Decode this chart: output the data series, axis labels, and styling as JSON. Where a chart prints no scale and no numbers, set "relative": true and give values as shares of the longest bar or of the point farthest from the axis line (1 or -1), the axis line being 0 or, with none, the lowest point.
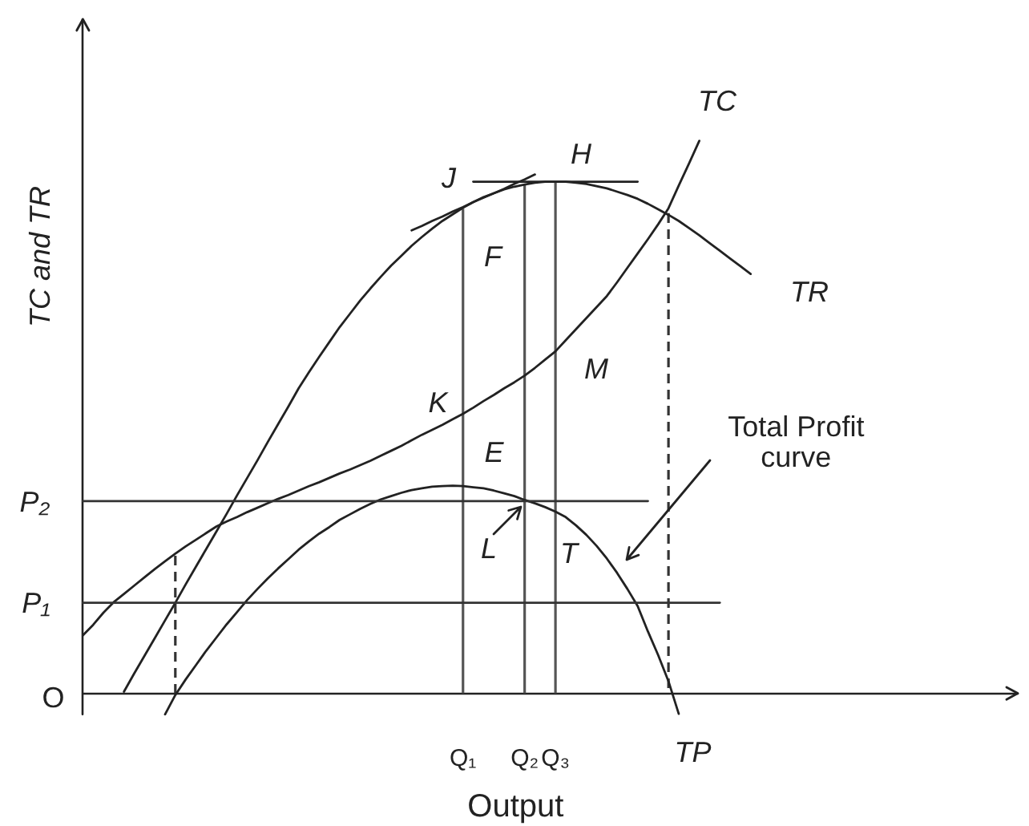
{
  "chart_data": {
    "type": "line",
    "relative": true,
    "marker": "none",
    "xlabel": "Output",
    "ylabel": "TC and TR",
    "categories": [
      null,
      null,
      null,
      null,
      null,
      null,
      null,
      null,
      null,
      null,
      null,
      null,
      null,
      null,
      null,
      null,
      null,
      null,
      null,
      null,
      null,
      null,
      null,
      null,
      null,
      null,
      null,
      null,
      null,
      null,
      null,
      null,
      null,
      null,
      null,
      null,
      null,
      "Q₁",
      null,
      null,
      null,
      null,
      null,
      "Q₂",
      null,
      null,
      "Q₃",
      null,
      null,
      null,
      null,
      null,
      null,
      null,
      null,
      null,
      null,
      null,
      null,
      null,
      null,
      null,
      null,
      null,
      null,
      null,
      null,
      null,
      null,
      null,
      null,
      null,
      null,
      null,
      null,
      null,
      null,
      null,
      null,
      null,
      null,
      null,
      null,
      null,
      null,
      null,
      null,
      null,
      null,
      null,
      null,
      null
    ],
    "series": [
      {
        "name": "TR",
        "color": "#222222",
        "values": [
          null,
          null,
          null,
          null,
          0.003,
          0.036,
          0.068,
          0.1,
          0.132,
          0.164,
          0.197,
          0.229,
          0.261,
          0.293,
          0.325,
          0.358,
          0.39,
          0.422,
          0.455,
          0.487,
          0.519,
          0.552,
          0.581,
          0.609,
          0.636,
          0.663,
          0.687,
          0.711,
          0.733,
          0.754,
          0.774,
          0.792,
          0.81,
          0.826,
          0.841,
          0.855,
          0.867,
          0.879,
          0.889,
          0.898,
          0.905,
          0.912,
          0.917,
          0.921,
          0.924,
          0.926,
          0.926,
          0.926,
          0.924,
          0.922,
          0.918,
          0.914,
          0.908,
          0.902,
          0.895,
          0.886,
          0.876,
          0.866,
          0.855,
          0.842,
          0.829,
          0.815,
          0.801,
          0.787,
          0.773,
          0.759,
          null,
          null,
          null,
          null,
          null,
          null,
          null,
          null,
          null,
          null,
          null,
          null,
          null,
          null,
          null,
          null,
          null,
          null,
          null,
          null,
          null,
          null,
          null,
          null,
          null,
          null
        ]
      },
      {
        "name": "TC",
        "color": "#222222",
        "values": [
          0.105,
          0.124,
          0.146,
          0.165,
          0.18,
          0.195,
          0.21,
          0.225,
          0.239,
          0.253,
          0.266,
          0.278,
          0.29,
          0.302,
          0.311,
          0.319,
          0.328,
          0.336,
          0.344,
          0.352,
          0.359,
          0.367,
          0.375,
          0.382,
          0.39,
          0.398,
          0.405,
          0.413,
          0.421,
          0.43,
          0.439,
          0.448,
          0.458,
          0.468,
          0.477,
          0.486,
          0.496,
          0.506,
          0.517,
          0.529,
          0.54,
          0.552,
          0.563,
          0.575,
          0.589,
          0.604,
          0.619,
          0.639,
          0.659,
          0.679,
          0.699,
          0.719,
          0.744,
          0.77,
          0.796,
          0.822,
          0.849,
          0.878,
          0.919,
          0.959,
          1,
          null,
          null,
          null,
          null,
          null,
          null,
          null,
          null,
          null,
          null,
          null,
          null,
          null,
          null,
          null,
          null,
          null,
          null,
          null,
          null,
          null,
          null,
          null,
          null,
          null,
          null,
          null,
          null,
          null,
          null,
          null
        ]
      },
      {
        "name": "TP",
        "color": "#222222",
        "values": [
          null,
          null,
          null,
          null,
          null,
          null,
          null,
          null,
          -0.038,
          -0.003,
          0.025,
          0.051,
          0.077,
          0.101,
          0.125,
          0.147,
          0.169,
          0.189,
          0.208,
          0.226,
          0.243,
          0.26,
          0.275,
          0.289,
          0.301,
          0.314,
          0.324,
          0.334,
          0.343,
          0.351,
          0.357,
          0.363,
          0.368,
          0.371,
          0.374,
          0.375,
          0.376,
          0.375,
          0.373,
          0.371,
          0.367,
          0.362,
          0.357,
          0.35,
          0.344,
          0.337,
          0.329,
          0.319,
          0.304,
          0.287,
          0.267,
          0.244,
          0.218,
          0.189,
          0.158,
          0.112,
          0.069,
          0.022,
          -0.037,
          null,
          null,
          null,
          null,
          null,
          null,
          null,
          null,
          null,
          null,
          null,
          null,
          null,
          null,
          null,
          null,
          null,
          null,
          null,
          null,
          null,
          null,
          null,
          null,
          null,
          null,
          null,
          null,
          null,
          null,
          null,
          null,
          null
        ]
      },
      {
        "name": "P₂",
        "color": "#333333",
        "values": [
          0.348,
          0.348,
          0.348,
          0.348,
          0.348,
          0.348,
          0.348,
          0.348,
          0.348,
          0.348,
          0.348,
          0.348,
          0.348,
          0.348,
          0.348,
          0.348,
          0.348,
          0.348,
          0.348,
          0.348,
          0.348,
          0.348,
          0.348,
          0.348,
          0.348,
          0.348,
          0.348,
          0.348,
          0.348,
          0.348,
          0.348,
          0.348,
          0.348,
          0.348,
          0.348,
          0.348,
          0.348,
          0.348,
          0.348,
          0.348,
          0.348,
          0.348,
          0.348,
          0.348,
          0.348,
          0.348,
          0.348,
          0.348,
          0.348,
          0.348,
          0.348,
          0.348,
          0.348,
          0.348,
          0.348,
          0.348,
          null,
          null,
          null,
          null,
          null,
          null,
          null,
          null,
          null,
          null,
          null,
          null,
          null,
          null,
          null,
          null,
          null,
          null,
          null,
          null,
          null,
          null,
          null,
          null,
          null,
          null,
          null,
          null,
          null,
          null,
          null,
          null,
          null,
          null,
          null,
          null
        ]
      },
      {
        "name": "P₁",
        "color": "#333333",
        "values": [
          0.164,
          0.164,
          0.164,
          0.164,
          0.164,
          0.164,
          0.164,
          0.164,
          0.164,
          0.164,
          0.164,
          0.164,
          0.164,
          0.164,
          0.164,
          0.164,
          0.164,
          0.164,
          0.164,
          0.164,
          0.164,
          0.164,
          0.164,
          0.164,
          0.164,
          0.164,
          0.164,
          0.164,
          0.164,
          0.164,
          0.164,
          0.164,
          0.164,
          0.164,
          0.164,
          0.164,
          0.164,
          0.164,
          0.164,
          0.164,
          0.164,
          0.164,
          0.164,
          0.164,
          0.164,
          0.164,
          0.164,
          0.164,
          0.164,
          0.164,
          0.164,
          0.164,
          0.164,
          0.164,
          0.164,
          0.164,
          0.164,
          0.164,
          0.164,
          0.164,
          0.164,
          0.164,
          0.164,
          null,
          null,
          null,
          null,
          null,
          null,
          null,
          null,
          null,
          null,
          null,
          null,
          null,
          null,
          null,
          null,
          null,
          null,
          null,
          null,
          null,
          null,
          null,
          null,
          null,
          null,
          null,
          null,
          null
        ]
      },
      {
        "color": "#222222",
        "values": [
          null,
          null,
          null,
          null,
          null,
          null,
          null,
          null,
          null,
          null,
          null,
          null,
          null,
          null,
          null,
          null,
          null,
          null,
          null,
          null,
          null,
          null,
          null,
          null,
          null,
          null,
          null,
          null,
          null,
          null,
          null,
          null,
          0.838,
          0.846,
          0.855,
          0.863,
          0.872,
          0.88,
          0.889,
          0.897,
          0.905,
          0.913,
          0.922,
          0.93,
          0.939,
          null,
          null,
          null,
          null,
          null,
          null,
          null,
          null,
          null,
          null,
          null,
          null,
          null,
          null,
          null,
          null,
          null,
          null,
          null,
          null,
          null,
          null,
          null,
          null,
          null,
          null,
          null,
          null,
          null,
          null,
          null,
          null,
          null,
          null,
          null,
          null,
          null,
          null,
          null,
          null,
          null,
          null,
          null,
          null,
          null,
          null,
          null
        ]
      },
      {
        "color": "#222222",
        "values": [
          null,
          null,
          null,
          null,
          null,
          null,
          null,
          null,
          null,
          null,
          null,
          null,
          null,
          null,
          null,
          null,
          null,
          null,
          null,
          null,
          null,
          null,
          null,
          null,
          null,
          null,
          null,
          null,
          null,
          null,
          null,
          null,
          null,
          null,
          null,
          null,
          null,
          null,
          0.926,
          0.926,
          0.926,
          0.926,
          0.926,
          0.926,
          0.926,
          0.926,
          0.926,
          0.926,
          0.926,
          0.926,
          0.926,
          0.926,
          0.926,
          0.926,
          0.926,
          null,
          null,
          null,
          null,
          null,
          null,
          null,
          null,
          null,
          null,
          null,
          null,
          null,
          null,
          null,
          null,
          null,
          null,
          null,
          null,
          null,
          null,
          null,
          null,
          null,
          null,
          null,
          null,
          null,
          null,
          null,
          null,
          null,
          null,
          null,
          null,
          null
        ]
      },
      {
        "type": "bar",
        "color": "#555555",
        "values": [
          null,
          null,
          null,
          null,
          null,
          null,
          null,
          null,
          null,
          null,
          null,
          null,
          null,
          null,
          null,
          null,
          null,
          null,
          null,
          null,
          null,
          null,
          null,
          null,
          null,
          null,
          null,
          null,
          null,
          null,
          null,
          null,
          null,
          null,
          null,
          null,
          null,
          0.877,
          null,
          null,
          null,
          null,
          null,
          0.922,
          null,
          null,
          0.926,
          null,
          null,
          null,
          null,
          null,
          null,
          null,
          null,
          null,
          null,
          null,
          null,
          null,
          null,
          null,
          null,
          null,
          null,
          null,
          null,
          null,
          null,
          null,
          null,
          null,
          null,
          null,
          null,
          null,
          null,
          null,
          null,
          null,
          null,
          null,
          null,
          null,
          null,
          null,
          null,
          null,
          null,
          null,
          null,
          null
        ]
      },
      {
        "type": "bar",
        "color": "#333333",
        "line_style": "dashed",
        "values": [
          null,
          null,
          null,
          null,
          null,
          null,
          null,
          null,
          null,
          0.249,
          null,
          null,
          null,
          null,
          null,
          null,
          null,
          null,
          null,
          null,
          null,
          null,
          null,
          null,
          null,
          null,
          null,
          null,
          null,
          null,
          null,
          null,
          null,
          null,
          null,
          null,
          null,
          null,
          null,
          null,
          null,
          null,
          null,
          null,
          null,
          null,
          null,
          null,
          null,
          null,
          null,
          null,
          null,
          null,
          null,
          null,
          null,
          0.869,
          null,
          null,
          null,
          null,
          null,
          null,
          null,
          null,
          null,
          null,
          null,
          null,
          null,
          null,
          null,
          null,
          null,
          null,
          null,
          null,
          null,
          null,
          null,
          null,
          null,
          null,
          null,
          null,
          null,
          null,
          null,
          null,
          null,
          null
        ]
      }
    ],
    "annotations": [
      "O",
      {
        "text": "J",
        "x": "Q₁",
        "y": 0.877
      },
      {
        "text": "H",
        "x": "Q₃",
        "y": 0.926
      },
      "F",
      {
        "text": "K",
        "x": "Q₁",
        "y": 0.506
      },
      "E",
      "M",
      {
        "text": "L",
        "x": "Q₂",
        "y": 0.349
      },
      "T",
      "Total Profit curve"
    ]
  }
}
